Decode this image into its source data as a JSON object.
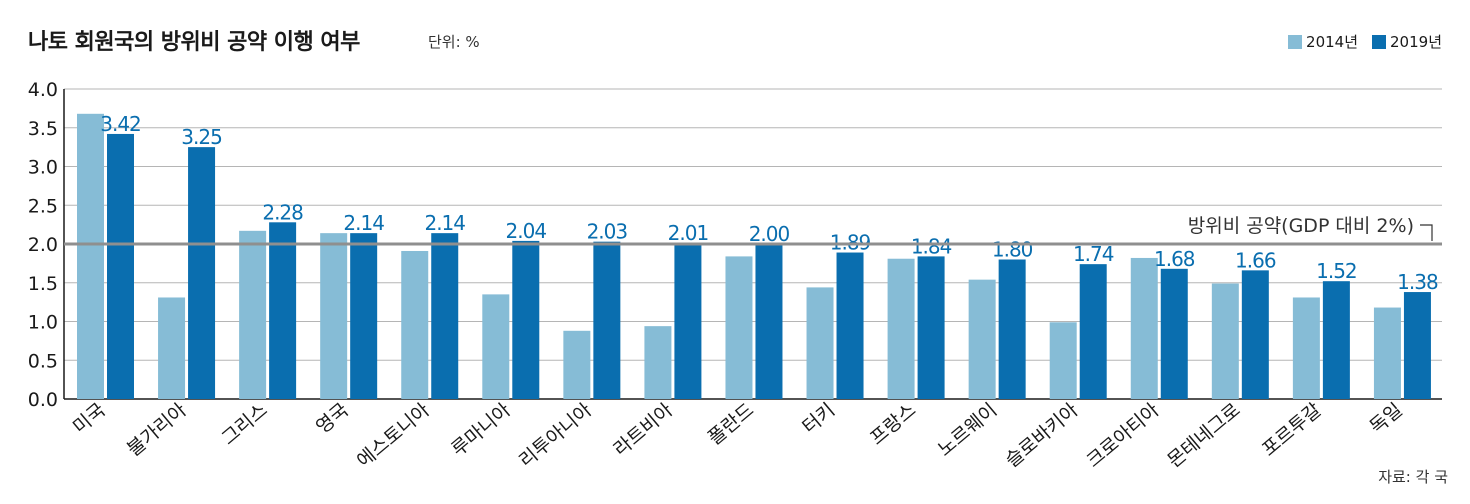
{
  "colors": {
    "series_2014": "#86bcd6",
    "series_2019": "#0a6eaf",
    "pledge_line": "#8f8f8f",
    "grid": "#b5b5b5",
    "axis": "#1a1a1a",
    "value_label": "#0a6eaf"
  },
  "chart_data": {
    "type": "bar",
    "title": "나토 회원국의 방위비 공약 이행 여부",
    "unit": "단위: %",
    "source": "자료: 각 국",
    "categories": [
      "미국",
      "불가리아",
      "그리스",
      "영국",
      "에스토니아",
      "루마니아",
      "리투아니아",
      "라트비아",
      "폴란드",
      "터키",
      "프랑스",
      "노르웨이",
      "슬로바키아",
      "크로아티아",
      "몬테네그로",
      "포르투갈",
      "독일"
    ],
    "series": [
      {
        "name": "2014년",
        "values": [
          3.68,
          1.31,
          2.17,
          2.14,
          1.91,
          1.35,
          0.88,
          0.94,
          1.84,
          1.44,
          1.81,
          1.54,
          0.99,
          1.82,
          1.49,
          1.31,
          1.18
        ]
      },
      {
        "name": "2019년",
        "values": [
          3.42,
          3.25,
          2.28,
          2.14,
          2.14,
          2.04,
          2.03,
          2.01,
          2.0,
          1.89,
          1.84,
          1.8,
          1.74,
          1.68,
          1.66,
          1.52,
          1.38
        ],
        "labels": [
          "3.42",
          "3.25",
          "2.28",
          "2.14",
          "2.14",
          "2.04",
          "2.03",
          "2.01",
          "2.00",
          "1.89",
          "1.84",
          "1.80",
          "1.74",
          "1.68",
          "1.66",
          "1.52",
          "1.38"
        ]
      }
    ],
    "ylim": [
      0,
      4.0
    ],
    "yticks": [
      "0.0",
      "0.5",
      "1.0",
      "1.5",
      "2.0",
      "2.5",
      "3.0",
      "3.5",
      "4.0"
    ],
    "grid": true,
    "legend_position": "top-right",
    "reference_line": {
      "value": 2.0,
      "label": "방위비 공약(GDP 대비 2%)"
    }
  }
}
